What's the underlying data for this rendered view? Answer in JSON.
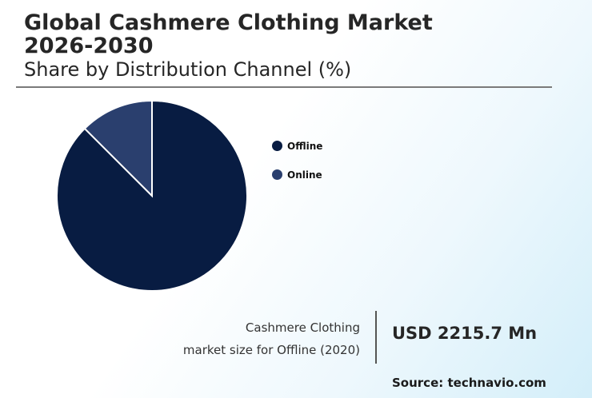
{
  "header": {
    "title_line1": "Global Cashmere Clothing Market",
    "title_line2": "2026-2030",
    "subtitle": "Share by Distribution Channel (%)"
  },
  "chart_data": {
    "type": "pie",
    "title": "Global Cashmere Clothing Market 2026-2030",
    "subtitle": "Share by Distribution Channel (%)",
    "labels": [
      "Offline",
      "Online"
    ],
    "values": [
      87.5,
      12.5
    ],
    "colors": [
      "#081c42",
      "#2a3f6e"
    ],
    "legend_position": "right"
  },
  "callout": {
    "caption_line1": "Cashmere Clothing",
    "caption_line2": "market size for Offline (2020)",
    "value": "USD 2215.7 Mn"
  },
  "source": "Source: technavio.com"
}
